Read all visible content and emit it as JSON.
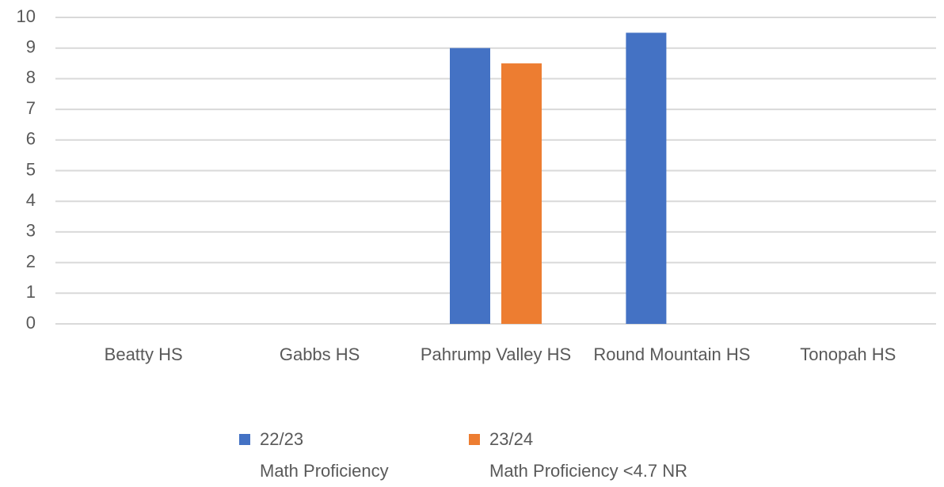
{
  "chart_data": {
    "type": "bar",
    "categories": [
      "Beatty HS",
      "Gabbs HS",
      "Pahrump Valley HS",
      "Round Mountain HS",
      "Tonopah HS"
    ],
    "series": [
      {
        "name": "22/23\nMath Proficiency",
        "color": "#4472c4",
        "values": [
          null,
          null,
          9,
          9.5,
          null
        ]
      },
      {
        "name": "23/24\nMath Proficiency <4.7 NR",
        "color": "#ed7d31",
        "values": [
          null,
          null,
          8.5,
          null,
          null
        ]
      }
    ],
    "ylim": [
      0,
      10
    ],
    "yticks": [
      0,
      1,
      2,
      3,
      4,
      5,
      6,
      7,
      8,
      9,
      10
    ],
    "grid": true,
    "legend": "bottom"
  }
}
